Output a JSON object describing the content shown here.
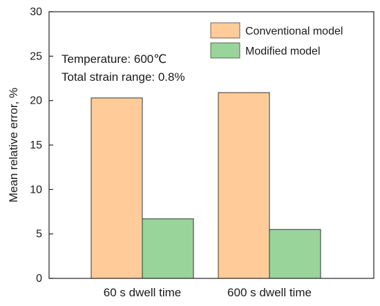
{
  "chart_data": {
    "type": "bar",
    "categories": [
      "60 s dwell time",
      "600 s dwell time"
    ],
    "series": [
      {
        "name": "Conventional model",
        "values": [
          20.3,
          20.9
        ],
        "color": "#FFCC99"
      },
      {
        "name": "Modified model",
        "values": [
          6.7,
          5.5
        ],
        "color": "#99D49A"
      }
    ],
    "xlabel": "",
    "ylabel": "Mean relative error, %",
    "ylim": [
      0,
      30
    ],
    "yticks": [
      0,
      5,
      10,
      15,
      20,
      25,
      30
    ],
    "grid": false,
    "legend_position": "top-right",
    "annotations": [
      "Temperature: 600℃",
      "Total strain range: 0.8%"
    ]
  }
}
